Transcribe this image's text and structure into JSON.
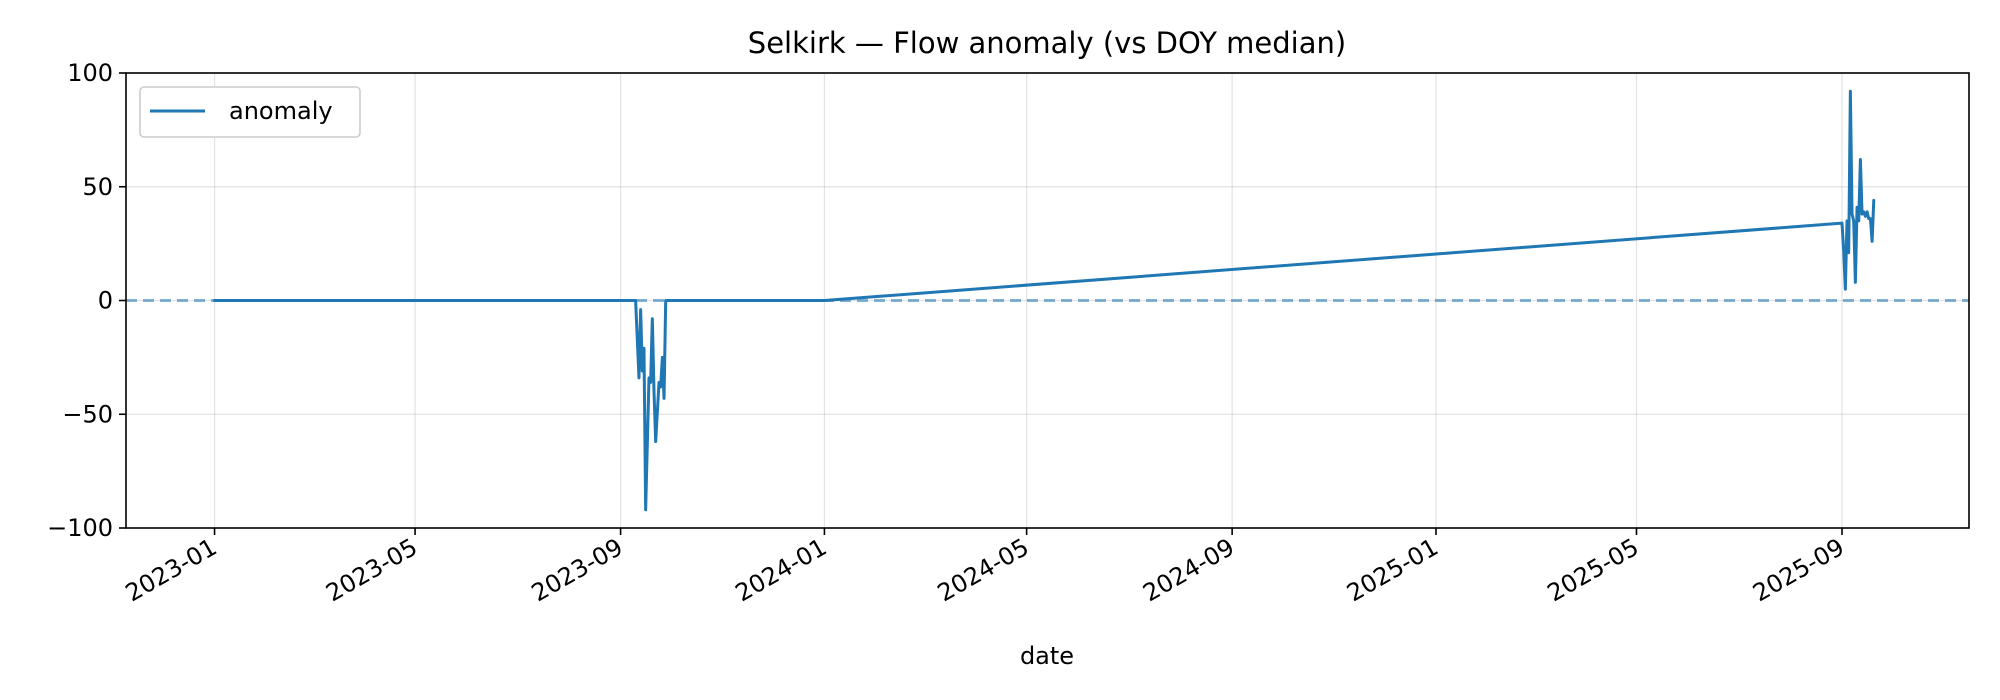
{
  "chart_data": {
    "type": "line",
    "title": "Selkirk — Flow anomaly (vs DOY median)",
    "xlabel": "date",
    "ylabel": "",
    "x_axis": "date",
    "xlim": [
      "2022-11-09",
      "2025-11-16"
    ],
    "ylim": [
      -100,
      100
    ],
    "x_ticks": [
      "2023-01",
      "2023-05",
      "2023-09",
      "2024-01",
      "2024-05",
      "2024-09",
      "2025-01",
      "2025-05",
      "2025-09"
    ],
    "y_ticks": [
      100,
      50,
      0,
      -50,
      -100
    ],
    "y_tick_labels": [
      "100",
      "50",
      "0",
      "−50",
      "−100"
    ],
    "grid": true,
    "legend": {
      "placement": "top-left",
      "entries": [
        "anomaly"
      ]
    },
    "reference_line": {
      "y": 0,
      "style": "dashed"
    },
    "colors": {
      "series": "#1f77b4",
      "reference": "#1f77b4"
    },
    "series": [
      {
        "name": "anomaly",
        "x": [
          "2023-01-01",
          "2023-09-10",
          "2023-09-12",
          "2023-09-13",
          "2023-09-14",
          "2023-09-15",
          "2023-09-16",
          "2023-09-18",
          "2023-09-19",
          "2023-09-20",
          "2023-09-21",
          "2023-09-22",
          "2023-09-24",
          "2023-09-25",
          "2023-09-26",
          "2023-09-27",
          "2023-09-28",
          "2023-09-29",
          "2023-09-30",
          "2023-10-01",
          "2023-10-02",
          "2024-01-01",
          "2025-09-01",
          "2025-09-02",
          "2025-09-03",
          "2025-09-04",
          "2025-09-05",
          "2025-09-06",
          "2025-09-07",
          "2025-09-08",
          "2025-09-09",
          "2025-09-10",
          "2025-09-11",
          "2025-09-12",
          "2025-09-13",
          "2025-09-14",
          "2025-09-15",
          "2025-09-16",
          "2025-09-17",
          "2025-09-18",
          "2025-09-19",
          "2025-09-20"
        ],
        "y": [
          0,
          0,
          -34,
          -4,
          -31,
          -21,
          -92,
          -34,
          -36,
          -8,
          -40,
          -62,
          -36,
          -38,
          -25,
          -43,
          0,
          0,
          0,
          0,
          0,
          0,
          34,
          22,
          5,
          35,
          21,
          92,
          38,
          35,
          8,
          41,
          35,
          62,
          38,
          39,
          37,
          39,
          36,
          36,
          26,
          44
        ]
      }
    ]
  }
}
